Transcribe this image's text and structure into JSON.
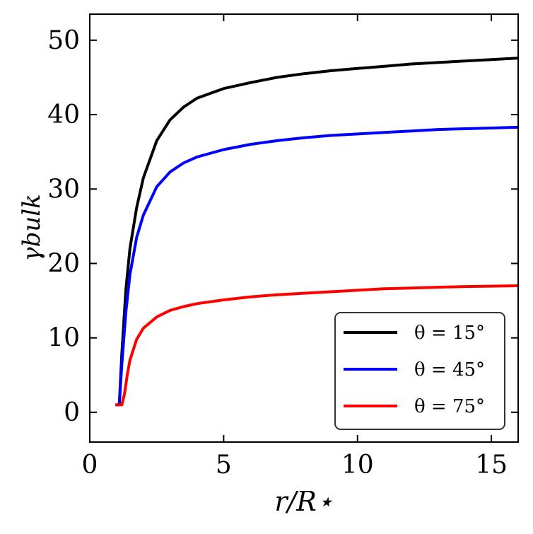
{
  "chart_data": {
    "type": "line",
    "title": "",
    "xlabel": "r/R⋆",
    "ylabel": "γbulk",
    "xlim": [
      0,
      16
    ],
    "ylim": [
      -4,
      53.5
    ],
    "xticks": [
      0,
      5,
      10,
      15
    ],
    "yticks": [
      0,
      10,
      20,
      30,
      40,
      50
    ],
    "grid": false,
    "legend_position": "lower-right",
    "series": [
      {
        "name": "θ = 15°",
        "color": "#000000",
        "x": [
          1.0,
          1.1,
          1.2,
          1.35,
          1.5,
          1.75,
          2.0,
          2.5,
          3.0,
          3.5,
          4.0,
          5.0,
          6.0,
          7.0,
          8.0,
          9.0,
          10.0,
          11.0,
          12.0,
          13.0,
          14.0,
          15.0,
          16.0
        ],
        "y": [
          1.0,
          1.0,
          8.0,
          16.5,
          22.0,
          27.5,
          31.5,
          36.5,
          39.3,
          41.0,
          42.2,
          43.5,
          44.3,
          45.0,
          45.5,
          45.9,
          46.2,
          46.5,
          46.8,
          47.0,
          47.2,
          47.4,
          47.6
        ]
      },
      {
        "name": "θ = 45°",
        "color": "#0000ff",
        "x": [
          1.0,
          1.1,
          1.2,
          1.35,
          1.5,
          1.75,
          2.0,
          2.5,
          3.0,
          3.5,
          4.0,
          5.0,
          6.0,
          7.0,
          8.0,
          9.0,
          10.0,
          11.0,
          12.0,
          13.0,
          14.0,
          15.0,
          16.0
        ],
        "y": [
          1.0,
          1.0,
          6.5,
          13.5,
          18.5,
          23.5,
          26.5,
          30.3,
          32.3,
          33.5,
          34.3,
          35.3,
          36.0,
          36.5,
          36.9,
          37.2,
          37.4,
          37.6,
          37.8,
          38.0,
          38.1,
          38.2,
          38.3
        ]
      },
      {
        "name": "θ = 75°",
        "color": "#ff0000",
        "x": [
          1.0,
          1.1,
          1.2,
          1.3,
          1.4,
          1.5,
          1.75,
          2.0,
          2.5,
          3.0,
          3.5,
          4.0,
          5.0,
          6.0,
          7.0,
          8.0,
          9.0,
          10.0,
          11.0,
          12.0,
          13.0,
          14.0,
          15.0,
          16.0
        ],
        "y": [
          1.0,
          1.0,
          1.0,
          2.5,
          5.0,
          7.0,
          9.8,
          11.3,
          12.8,
          13.7,
          14.2,
          14.6,
          15.1,
          15.5,
          15.8,
          16.0,
          16.2,
          16.4,
          16.6,
          16.7,
          16.8,
          16.9,
          16.95,
          17.0
        ]
      }
    ]
  }
}
